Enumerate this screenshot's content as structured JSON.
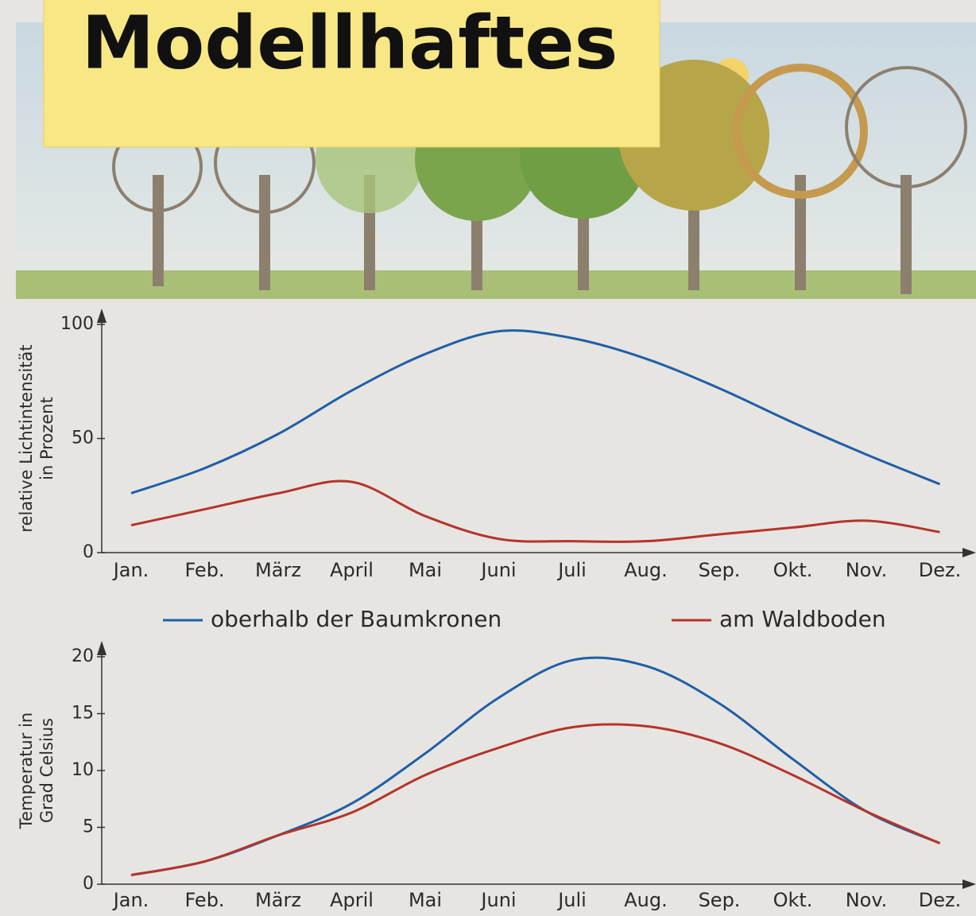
{
  "header": {
    "note": "Modellhaftes"
  },
  "chart_data": [
    {
      "type": "line",
      "ylabel": [
        "relative Lichtintensität",
        "in Prozent"
      ],
      "categories": [
        "Jan.",
        "Feb.",
        "März",
        "April",
        "Mai",
        "Juni",
        "Juli",
        "Aug.",
        "Sep.",
        "Okt.",
        "Nov.",
        "Dez."
      ],
      "ylim": [
        0,
        100
      ],
      "yticks": [
        0,
        50,
        100
      ],
      "series": [
        {
          "name": "oberhalb der Baumkronen",
          "color": "#1f5fa8",
          "values": [
            26,
            37,
            52,
            71,
            87,
            97,
            94,
            85,
            72,
            57,
            43,
            30
          ]
        },
        {
          "name": "am Waldboden",
          "color": "#b5342a",
          "values": [
            12,
            19,
            26,
            31,
            16,
            6,
            5,
            5,
            8,
            11,
            14,
            9
          ]
        }
      ]
    },
    {
      "type": "line",
      "ylabel": [
        "Temperatur in",
        "Grad Celsius"
      ],
      "categories": [
        "Jan.",
        "Feb.",
        "März",
        "April",
        "Mai",
        "Juni",
        "Juli",
        "Aug.",
        "Sep.",
        "Okt.",
        "Nov.",
        "Dez."
      ],
      "ylim": [
        0,
        20
      ],
      "yticks": [
        0,
        5,
        10,
        15,
        20
      ],
      "series": [
        {
          "color": "#1f5fa8",
          "values": [
            0.8,
            2,
            4.3,
            7.1,
            11.5,
            16.4,
            19.7,
            19.2,
            15.9,
            11,
            6.4,
            3.6
          ]
        },
        {
          "color": "#b5342a",
          "values": [
            0.8,
            2,
            4.3,
            6.3,
            9.6,
            12,
            13.8,
            13.9,
            12.4,
            9.6,
            6.4,
            3.6
          ]
        }
      ]
    }
  ]
}
